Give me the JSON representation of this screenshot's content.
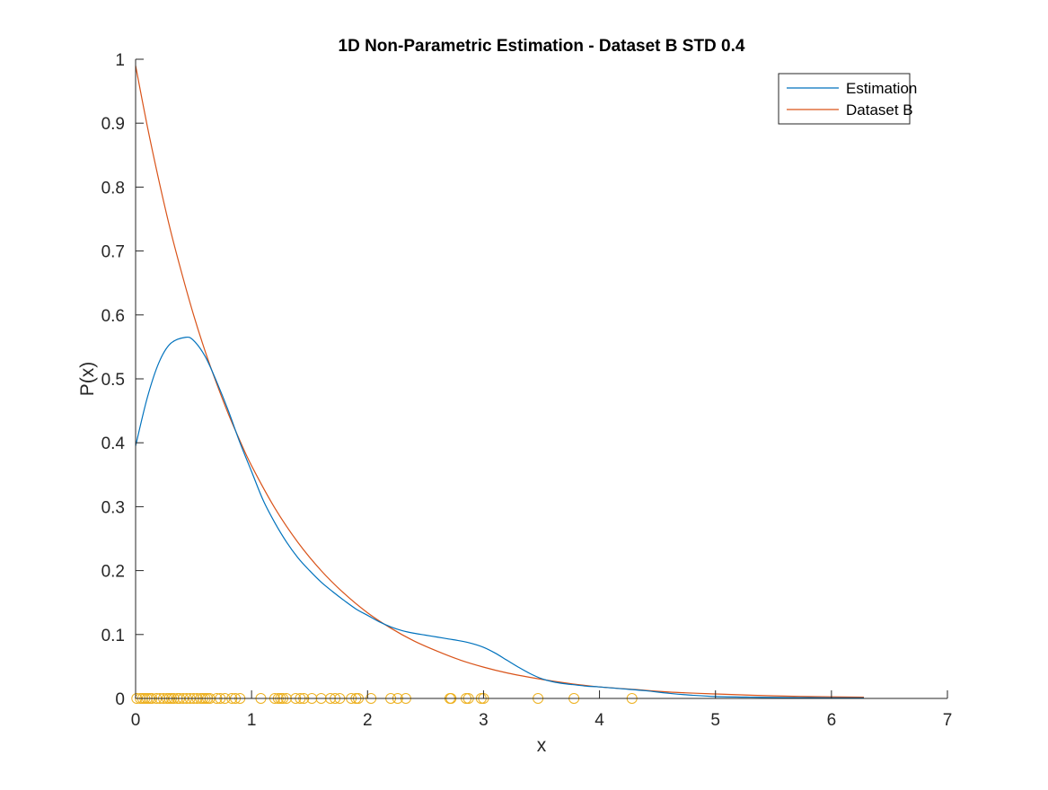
{
  "chart_data": {
    "type": "line",
    "title": "1D Non-Parametric Estimation - Dataset B STD 0.4",
    "xlabel": "x",
    "ylabel": "P(x)",
    "xlim": [
      0,
      7
    ],
    "ylim": [
      0,
      1
    ],
    "x_ticks": [
      "0",
      "1",
      "2",
      "3",
      "4",
      "5",
      "6",
      "7"
    ],
    "y_ticks": [
      "0",
      "0.1",
      "0.2",
      "0.3",
      "0.4",
      "0.5",
      "0.6",
      "0.7",
      "0.8",
      "0.9",
      "1"
    ],
    "grid": false,
    "legend_position": "top-right",
    "series": [
      {
        "name": "Estimation",
        "color": "#0072BD",
        "x": [
          0,
          0.1,
          0.2,
          0.3,
          0.43,
          0.5,
          0.6,
          0.7,
          0.8,
          0.9,
          1.0,
          1.1,
          1.2,
          1.3,
          1.4,
          1.5,
          1.6,
          1.7,
          1.8,
          1.9,
          2.0,
          2.1,
          2.2,
          2.3,
          2.4,
          2.5,
          2.6,
          2.7,
          2.8,
          2.9,
          3.0,
          3.1,
          3.2,
          3.3,
          3.4,
          3.5,
          3.6,
          3.7,
          3.8,
          3.9,
          4.0,
          4.2,
          4.4,
          4.6,
          4.8,
          5.0,
          5.3,
          5.6,
          6.0,
          6.28
        ],
        "y": [
          0.395,
          0.47,
          0.525,
          0.555,
          0.565,
          0.56,
          0.535,
          0.495,
          0.45,
          0.4,
          0.355,
          0.31,
          0.275,
          0.245,
          0.22,
          0.2,
          0.182,
          0.167,
          0.153,
          0.14,
          0.13,
          0.12,
          0.112,
          0.106,
          0.102,
          0.099,
          0.096,
          0.093,
          0.09,
          0.086,
          0.08,
          0.071,
          0.06,
          0.049,
          0.039,
          0.031,
          0.026,
          0.023,
          0.021,
          0.019,
          0.018,
          0.015,
          0.012,
          0.008,
          0.005,
          0.003,
          0.002,
          0.0015,
          0.001,
          0.0008
        ]
      },
      {
        "name": "Dataset B",
        "color": "#D95319",
        "x": [
          0,
          0.1,
          0.2,
          0.3,
          0.4,
          0.5,
          0.6,
          0.7,
          0.8,
          0.9,
          1.0,
          1.2,
          1.4,
          1.6,
          1.8,
          2.0,
          2.2,
          2.4,
          2.6,
          2.8,
          3.0,
          3.2,
          3.4,
          3.6,
          3.8,
          4.0,
          4.3,
          4.6,
          5.0,
          5.5,
          6.0,
          6.28
        ],
        "y": [
          0.99,
          0.896,
          0.811,
          0.733,
          0.664,
          0.6,
          0.543,
          0.492,
          0.445,
          0.403,
          0.364,
          0.298,
          0.244,
          0.2,
          0.164,
          0.134,
          0.11,
          0.09,
          0.074,
          0.06,
          0.049,
          0.04,
          0.033,
          0.027,
          0.022,
          0.018,
          0.014,
          0.01,
          0.007,
          0.004,
          0.0025,
          0.0019
        ]
      }
    ],
    "samples": {
      "color": "#EDB120",
      "marker": "circle",
      "x": [
        0.01,
        0.04,
        0.06,
        0.08,
        0.1,
        0.12,
        0.14,
        0.18,
        0.21,
        0.24,
        0.27,
        0.29,
        0.31,
        0.33,
        0.36,
        0.38,
        0.41,
        0.44,
        0.47,
        0.5,
        0.53,
        0.56,
        0.58,
        0.6,
        0.62,
        0.64,
        0.7,
        0.73,
        0.77,
        0.83,
        0.86,
        0.9,
        1.08,
        1.2,
        1.23,
        1.25,
        1.27,
        1.3,
        1.38,
        1.42,
        1.45,
        1.52,
        1.6,
        1.68,
        1.72,
        1.76,
        1.86,
        1.9,
        1.92,
        2.03,
        2.2,
        2.26,
        2.33,
        2.71,
        2.72,
        2.85,
        2.87,
        2.98,
        3.0,
        3.47,
        3.78,
        4.28
      ],
      "y": 0
    }
  }
}
